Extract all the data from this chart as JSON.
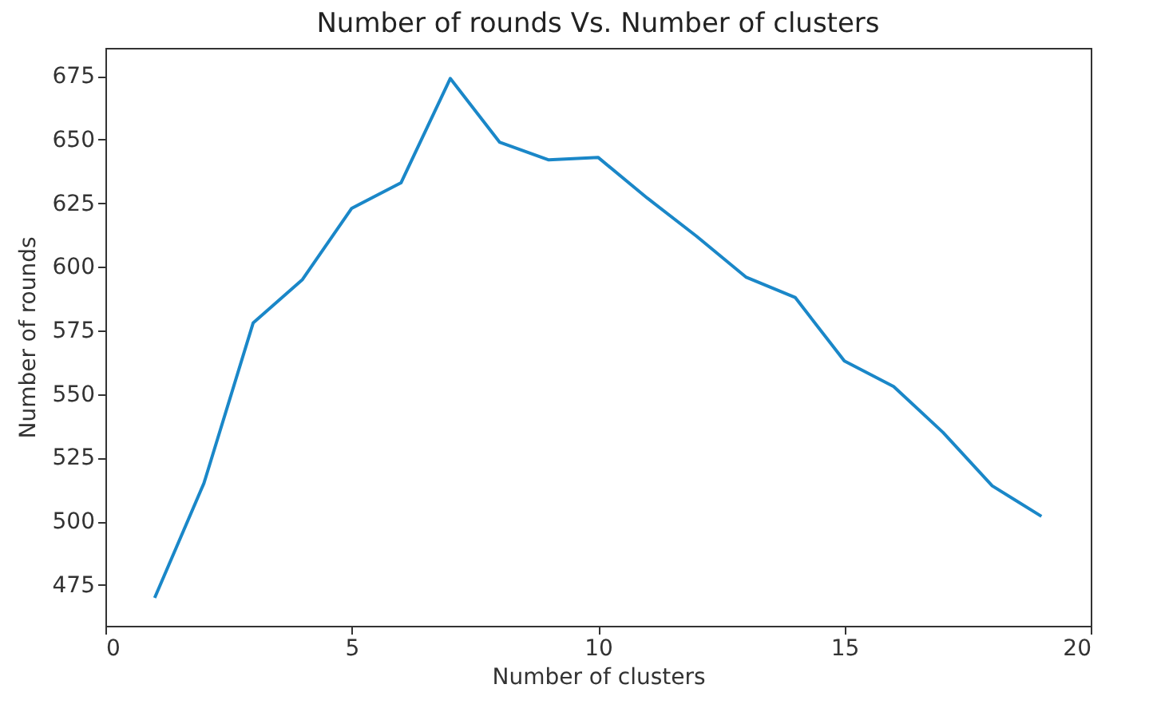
{
  "chart_data": {
    "type": "line",
    "title": "Number of rounds Vs. Number of clusters",
    "xlabel": "Number of clusters",
    "ylabel": "Number of rounds",
    "x": [
      1,
      2,
      3,
      4,
      5,
      6,
      7,
      8,
      9,
      10,
      11,
      12,
      13,
      14,
      15,
      16,
      17,
      18,
      19
    ],
    "series": [
      {
        "color": "#1a87c8",
        "values": [
          470,
          515,
          578,
          595,
          623,
          633,
          674,
          649,
          642,
          643,
          627,
          612,
          596,
          588,
          563,
          553,
          535,
          514,
          502
        ]
      }
    ],
    "xlim": [
      0,
      20
    ],
    "xticks": [
      0,
      5,
      10,
      15,
      20
    ],
    "ylim": [
      459,
      686
    ],
    "yticks": [
      475,
      500,
      525,
      550,
      575,
      600,
      625,
      650,
      675
    ],
    "grid": false
  }
}
